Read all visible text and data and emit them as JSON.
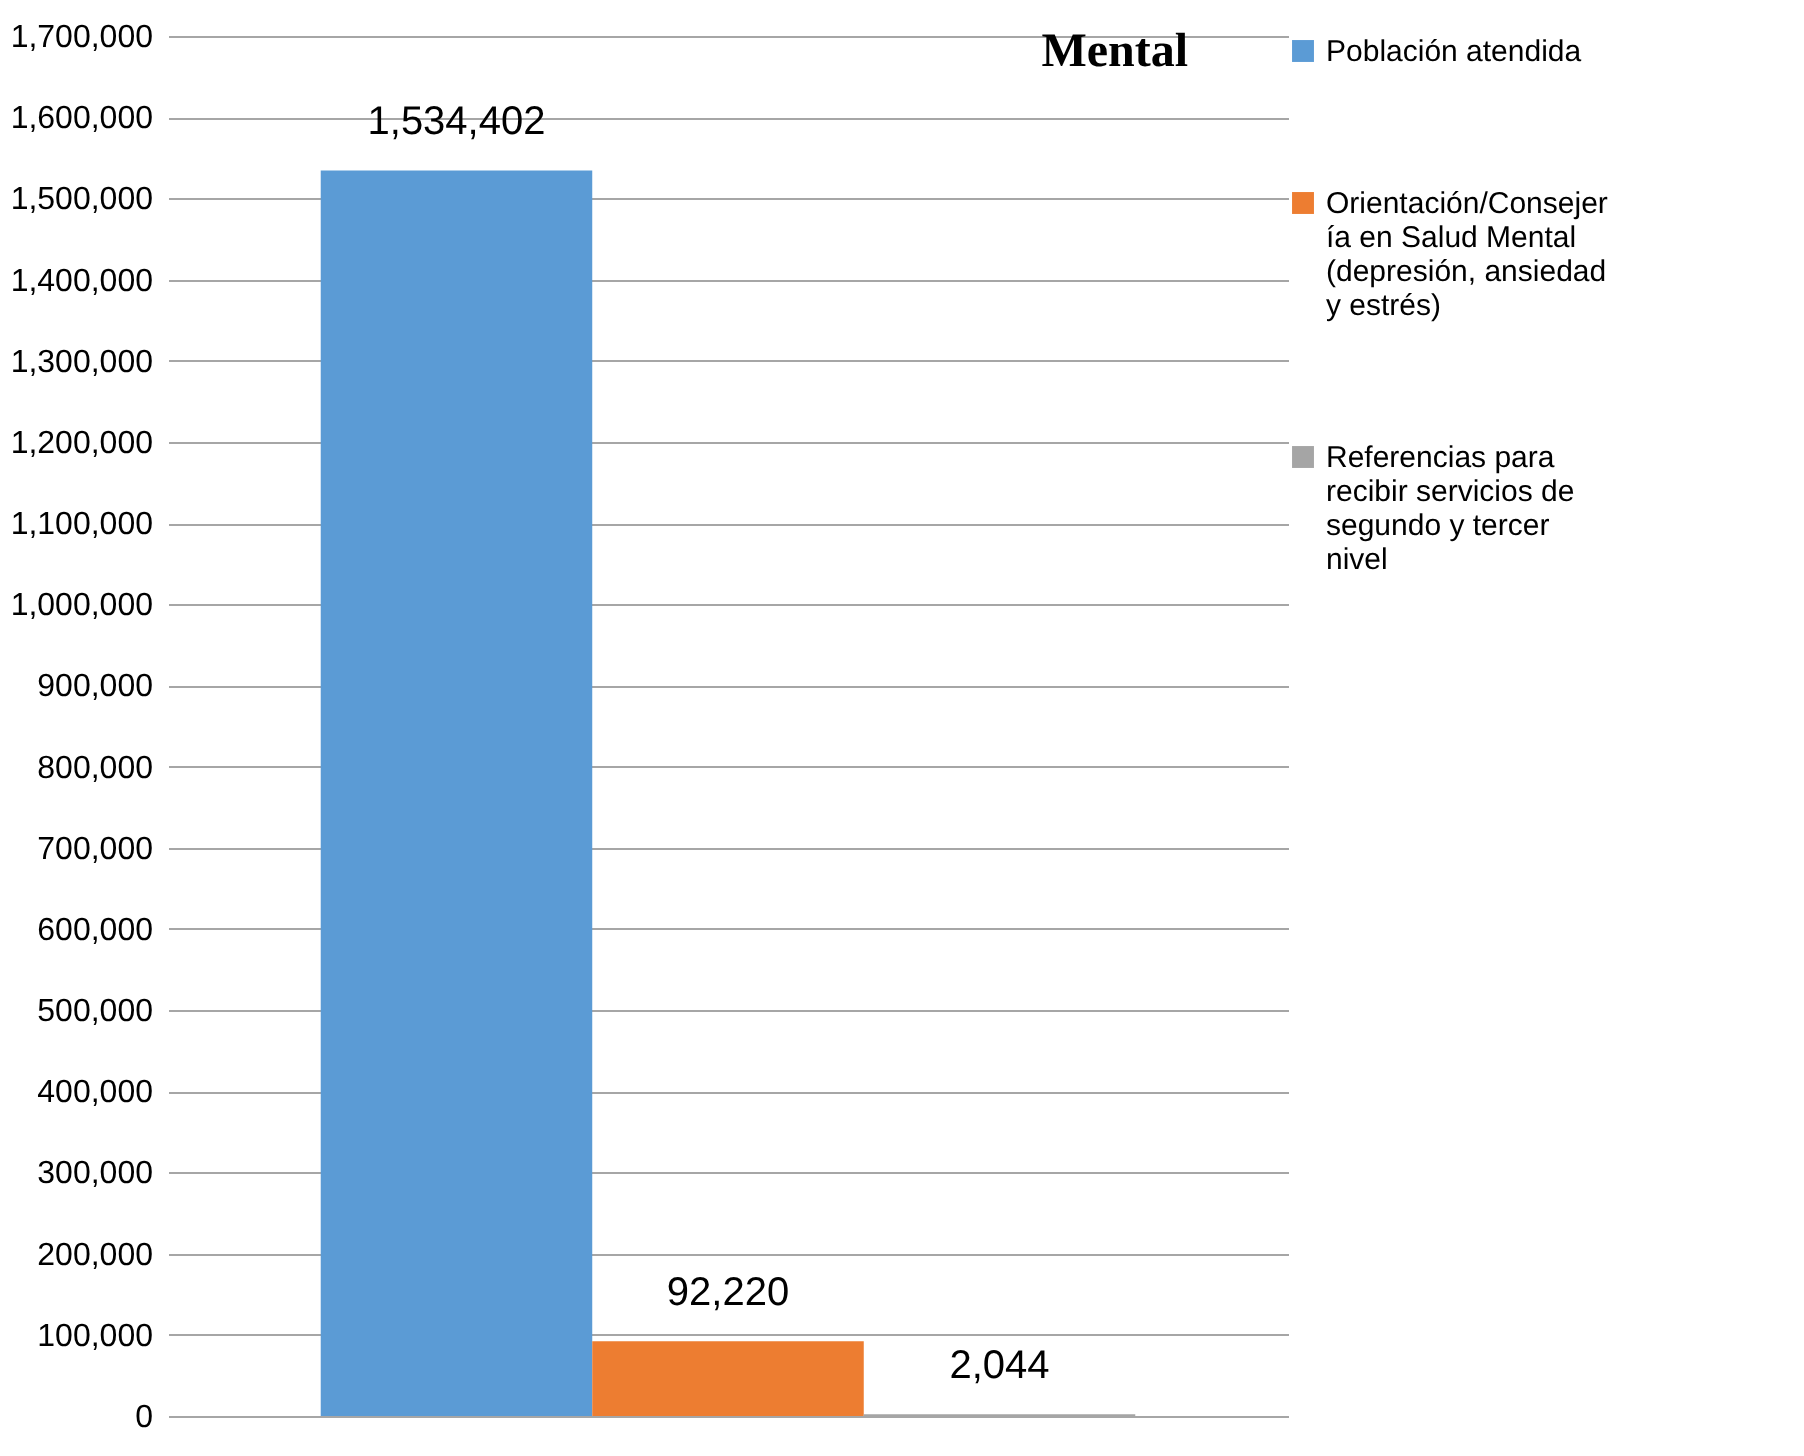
{
  "chart_data": {
    "type": "bar",
    "title": "Mental",
    "categories": [
      null
    ],
    "series": [
      {
        "name": "Población atendida",
        "color": "#5b9bd5",
        "values": [
          1534402
        ],
        "value_labels": [
          "1,534,402"
        ]
      },
      {
        "name": "Orientación/Consejería en Salud Mental (depresión, ansiedad y estrés)",
        "color": "#ed7d31",
        "values": [
          92220
        ],
        "value_labels": [
          "92,220"
        ]
      },
      {
        "name": "Referencias para recibir servicios de segundo y tercer nivel",
        "color": "#a5a5a5",
        "values": [
          2044
        ],
        "value_labels": [
          "2,044"
        ]
      }
    ],
    "ylim": [
      0,
      1700000
    ],
    "yticks": [
      0,
      {
        "value": 100000,
        "label": "100,000"
      },
      {
        "value": 200000,
        "label": "200,000"
      },
      {
        "value": 300000,
        "label": "300,000"
      },
      {
        "value": 400000,
        "label": "400,000"
      },
      {
        "value": 500000,
        "label": "500,000"
      },
      {
        "value": 600000,
        "label": "600,000"
      },
      {
        "value": 700000,
        "label": "700,000"
      },
      {
        "value": 800000,
        "label": "800,000"
      },
      {
        "value": 900000,
        "label": "900,000"
      },
      {
        "value": 1000000,
        "label": "1,000,000"
      },
      {
        "value": 1100000,
        "label": "1,100,000"
      },
      {
        "value": 1200000,
        "label": "1,200,000"
      },
      {
        "value": 1300000,
        "label": "1,300,000"
      },
      {
        "value": 1400000,
        "label": "1,400,000"
      },
      {
        "value": 1500000,
        "label": "1,500,000"
      },
      {
        "value": 1600000,
        "label": "1,600,000"
      },
      {
        "value": 1700000,
        "label": "1,700,000"
      }
    ],
    "grid": "y",
    "legend": "right",
    "tick_labels": "y"
  }
}
